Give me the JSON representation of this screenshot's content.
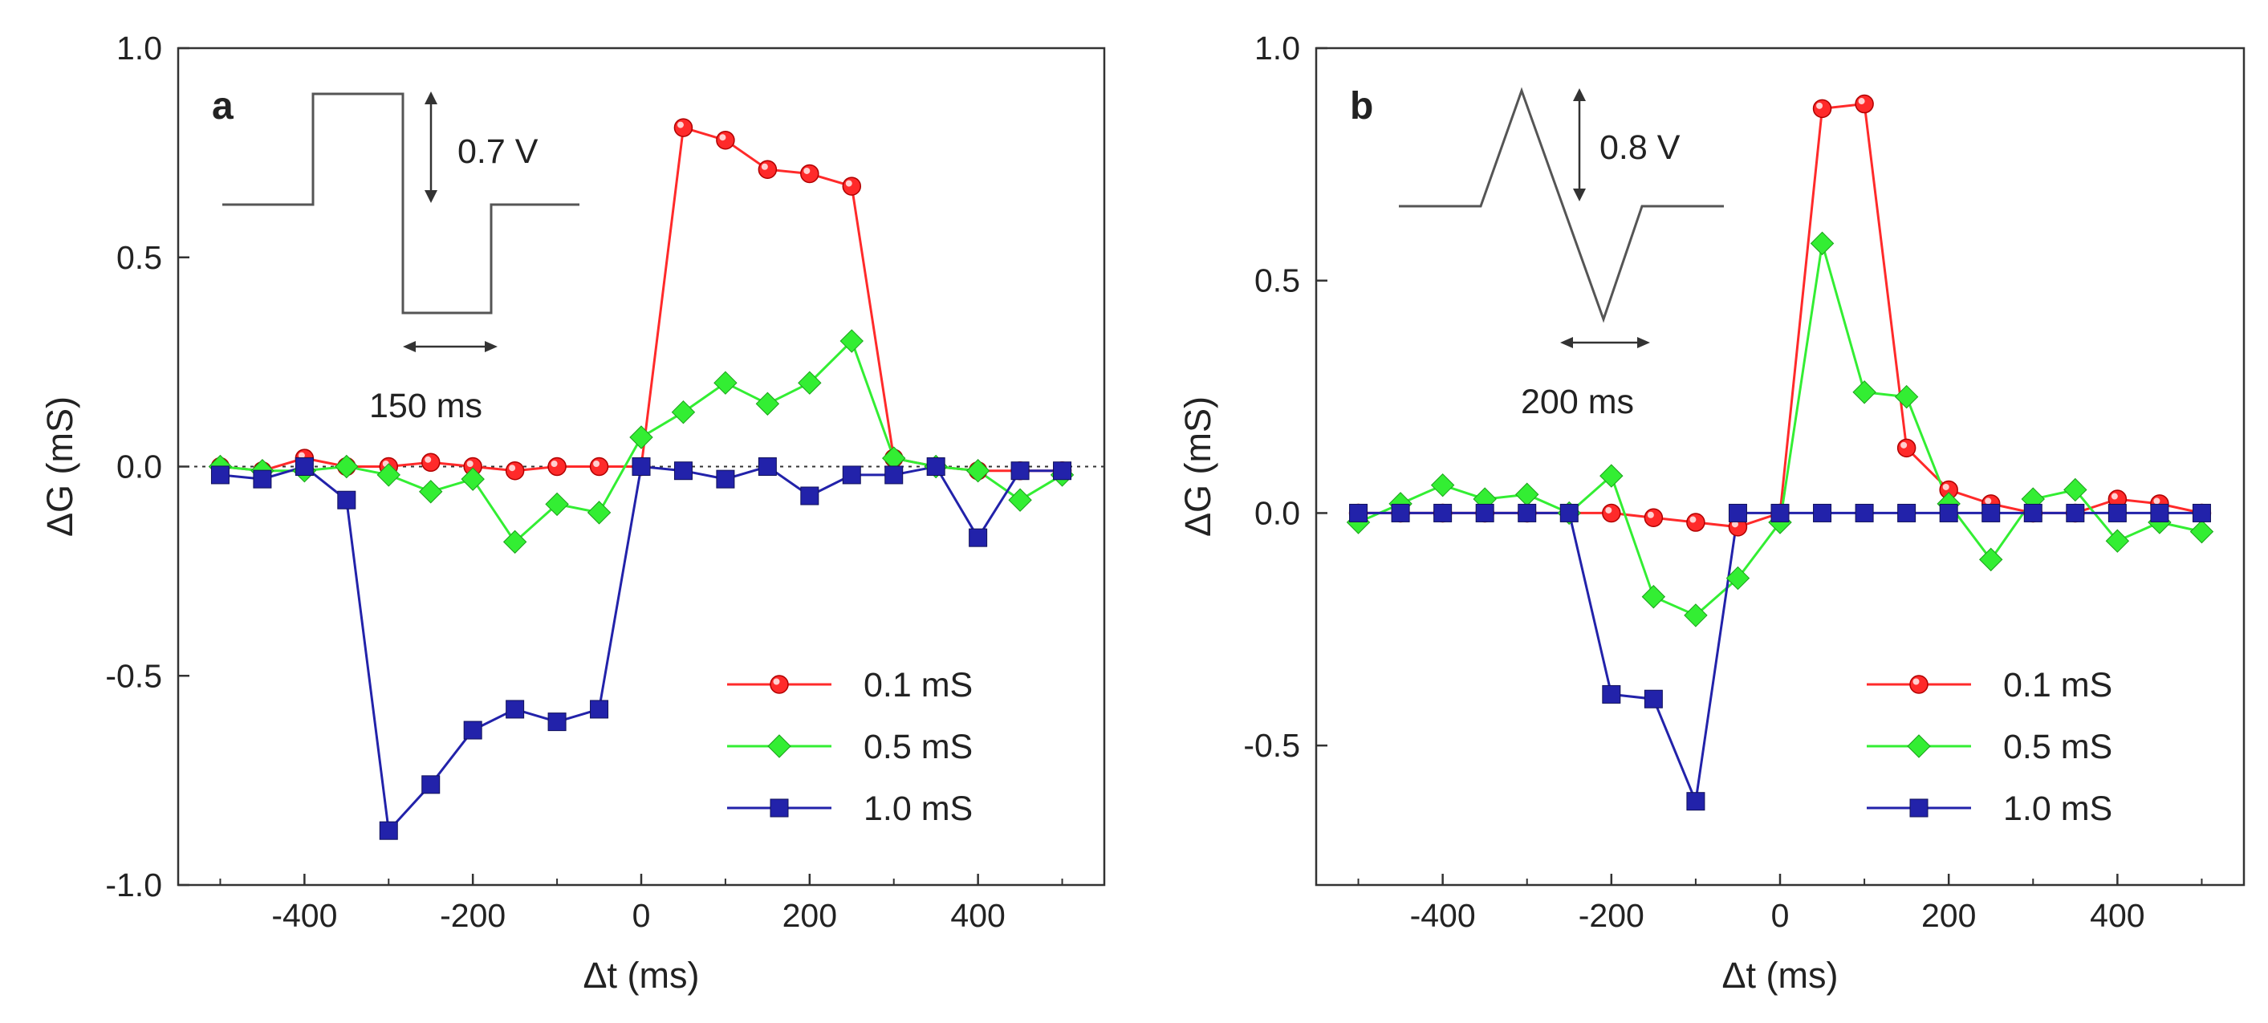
{
  "chart_data": [
    {
      "type": "line",
      "panel_label": "a",
      "xlabel": "Δt (ms)",
      "ylabel": "ΔG (mS)",
      "xlim": [
        -550,
        550
      ],
      "ylim": [
        -1.0,
        1.0
      ],
      "xticks": [
        -400,
        -200,
        0,
        200,
        400
      ],
      "yticks": [
        1.0,
        0.5,
        0.0,
        -0.5,
        -1.0
      ],
      "ytick_labels": [
        "1.0",
        "0.5",
        "0.0",
        "-0.5",
        "-1.0"
      ],
      "zero_reference_line": true,
      "legend_position": "bottom-right",
      "inset": {
        "shape": "square-pulse",
        "amplitude_label": "0.7 V",
        "width_label": "150 ms"
      },
      "series": [
        {
          "name": "0.1 mS",
          "color": "#ff2a2a",
          "marker": "circle",
          "x": [
            -500,
            -450,
            -400,
            -350,
            -300,
            -250,
            -200,
            -150,
            -100,
            -50,
            0,
            50,
            100,
            150,
            200,
            250,
            300,
            350,
            400,
            450,
            500
          ],
          "values": [
            0.0,
            -0.01,
            0.02,
            0.0,
            0.0,
            0.01,
            0.0,
            -0.01,
            0.0,
            0.0,
            0.0,
            0.81,
            0.78,
            0.71,
            0.7,
            0.67,
            0.02,
            0.0,
            -0.01,
            -0.01,
            -0.01
          ]
        },
        {
          "name": "0.5 mS",
          "color": "#33ee33",
          "marker": "diamond",
          "x": [
            -500,
            -450,
            -400,
            -350,
            -300,
            -250,
            -200,
            -150,
            -100,
            -50,
            0,
            50,
            100,
            150,
            200,
            250,
            300,
            350,
            400,
            450,
            500
          ],
          "values": [
            0.0,
            -0.01,
            -0.01,
            0.0,
            -0.02,
            -0.06,
            -0.03,
            -0.18,
            -0.09,
            -0.11,
            0.07,
            0.13,
            0.2,
            0.15,
            0.2,
            0.3,
            0.02,
            0.0,
            -0.01,
            -0.08,
            -0.02
          ]
        },
        {
          "name": "1.0 mS",
          "color": "#2222aa",
          "marker": "square",
          "x": [
            -500,
            -450,
            -400,
            -350,
            -300,
            -250,
            -200,
            -150,
            -100,
            -50,
            0,
            50,
            100,
            150,
            200,
            250,
            300,
            350,
            400,
            450,
            500
          ],
          "values": [
            -0.02,
            -0.03,
            0.0,
            -0.08,
            -0.87,
            -0.76,
            -0.63,
            -0.58,
            -0.61,
            -0.58,
            0.0,
            -0.01,
            -0.03,
            0.0,
            -0.07,
            -0.02,
            -0.02,
            0.0,
            -0.17,
            -0.01,
            -0.01
          ]
        }
      ]
    },
    {
      "type": "line",
      "panel_label": "b",
      "xlabel": "Δt (ms)",
      "ylabel": "ΔG (mS)",
      "xlim": [
        -550,
        550
      ],
      "ylim": [
        -0.8,
        1.0
      ],
      "xticks": [
        -400,
        -200,
        0,
        200,
        400
      ],
      "yticks": [
        1.0,
        0.5,
        0.0,
        -0.5
      ],
      "ytick_labels": [
        "1.0",
        "0.5",
        "0.0",
        "-0.5"
      ],
      "zero_reference_line": false,
      "legend_position": "bottom-right",
      "inset": {
        "shape": "triangle-pulse",
        "amplitude_label": "0.8 V",
        "width_label": "200 ms"
      },
      "series": [
        {
          "name": "0.1 mS",
          "color": "#ff2a2a",
          "marker": "circle",
          "x": [
            -500,
            -450,
            -400,
            -350,
            -300,
            -250,
            -200,
            -150,
            -100,
            -50,
            0,
            50,
            100,
            150,
            200,
            250,
            300,
            350,
            400,
            450,
            500
          ],
          "values": [
            0.0,
            0.0,
            0.0,
            0.0,
            0.0,
            0.0,
            0.0,
            -0.01,
            -0.02,
            -0.03,
            0.0,
            0.87,
            0.88,
            0.14,
            0.05,
            0.02,
            0.0,
            0.0,
            0.03,
            0.02,
            0.0
          ]
        },
        {
          "name": "0.5 mS",
          "color": "#33ee33",
          "marker": "diamond",
          "x": [
            -500,
            -450,
            -400,
            -350,
            -300,
            -250,
            -200,
            -150,
            -100,
            -50,
            0,
            50,
            100,
            150,
            200,
            250,
            300,
            350,
            400,
            450,
            500
          ],
          "values": [
            -0.02,
            0.02,
            0.06,
            0.03,
            0.04,
            0.0,
            0.08,
            -0.18,
            -0.22,
            -0.14,
            -0.02,
            0.58,
            0.26,
            0.25,
            0.02,
            -0.1,
            0.03,
            0.05,
            -0.06,
            -0.02,
            -0.04
          ]
        },
        {
          "name": "1.0 mS",
          "color": "#2222aa",
          "marker": "square",
          "x": [
            -500,
            -450,
            -400,
            -350,
            -300,
            -250,
            -200,
            -150,
            -100,
            -50,
            0,
            50,
            100,
            150,
            200,
            250,
            300,
            350,
            400,
            450,
            500
          ],
          "values": [
            0.0,
            0.0,
            0.0,
            0.0,
            0.0,
            0.0,
            -0.39,
            -0.4,
            -0.62,
            0.0,
            0.0,
            0.0,
            0.0,
            0.0,
            0.0,
            0.0,
            0.0,
            0.0,
            0.0,
            0.0,
            0.0
          ]
        }
      ]
    }
  ]
}
